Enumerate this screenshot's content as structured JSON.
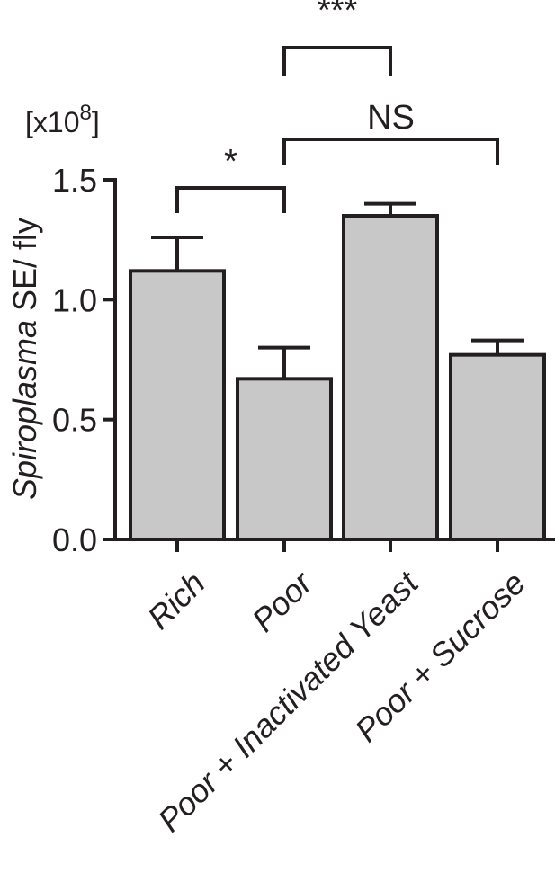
{
  "chart_data": {
    "type": "bar",
    "categories": [
      "Rich",
      "Poor",
      "Poor + Inactivated Yeast",
      "Poor + Sucrose"
    ],
    "values": [
      1.12,
      0.67,
      1.35,
      0.77
    ],
    "errors": [
      0.14,
      0.13,
      0.05,
      0.06
    ],
    "ylabel_italic": "Spiroplasma",
    "ylabel_rest": " SE/ fly",
    "yunit_prefix": "[x10",
    "yunit_exp": "8",
    "yunit_suffix": "]",
    "ylim": [
      0,
      1.5
    ],
    "yticks": [
      {
        "value": 0.0,
        "label": "0.0"
      },
      {
        "value": 0.5,
        "label": "0.5"
      },
      {
        "value": 1.0,
        "label": "1.0"
      },
      {
        "value": 1.5,
        "label": "1.5"
      }
    ],
    "grid": false,
    "colors": {
      "bar": "#c8c8c8",
      "ink": "#231f20"
    },
    "significance": [
      {
        "from": 0,
        "to": 1,
        "label": "*"
      },
      {
        "from": 1,
        "to": 3,
        "label": "NS"
      },
      {
        "from": 1,
        "to": 2,
        "label": "***"
      }
    ]
  }
}
